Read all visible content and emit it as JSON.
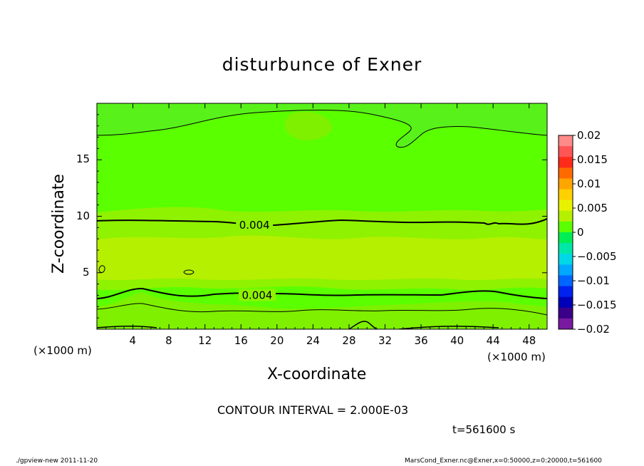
{
  "chart_data": {
    "type": "contour",
    "title": "disturbunce of Exner",
    "xlabel": "X-coordinate",
    "ylabel": "Z-coordinate",
    "x_unit_label": "(×1000 m)",
    "xlim": [
      0,
      50
    ],
    "ylim": [
      0,
      20
    ],
    "x_ticks": [
      4,
      8,
      12,
      16,
      20,
      24,
      28,
      32,
      36,
      40,
      44,
      48
    ],
    "y_ticks": [
      5,
      10,
      15
    ],
    "contour_interval_text": "CONTOUR INTERVAL = 2.000E-03",
    "contour_labels": [
      {
        "text": "0.004",
        "x": 17.5,
        "z": 9.2
      },
      {
        "text": "0.004",
        "x": 17.8,
        "z": 3.0
      }
    ],
    "colorbar": {
      "labels": [
        "0.02",
        "0.015",
        "0.01",
        "0.005",
        "0",
        "−0.005",
        "−0.01",
        "−0.015",
        "−0.02"
      ],
      "colors": [
        "#ff8a8a",
        "#ff5555",
        "#ff2b1a",
        "#ff6a00",
        "#ffa500",
        "#ffd000",
        "#e8f200",
        "#b4f000",
        "#5aff00",
        "#00ee55",
        "#00e8a8",
        "#00d8e8",
        "#00a8ff",
        "#0066ff",
        "#0022ee",
        "#0000b8",
        "#3a008a",
        "#7a1aa0"
      ]
    },
    "time_label": "t=561600 s"
  },
  "footer": {
    "left": "./gpview-new   2011-11-20",
    "right": "MarsCond_Exner.nc@Exner,x=0:50000,z=0:20000,t=561600"
  }
}
